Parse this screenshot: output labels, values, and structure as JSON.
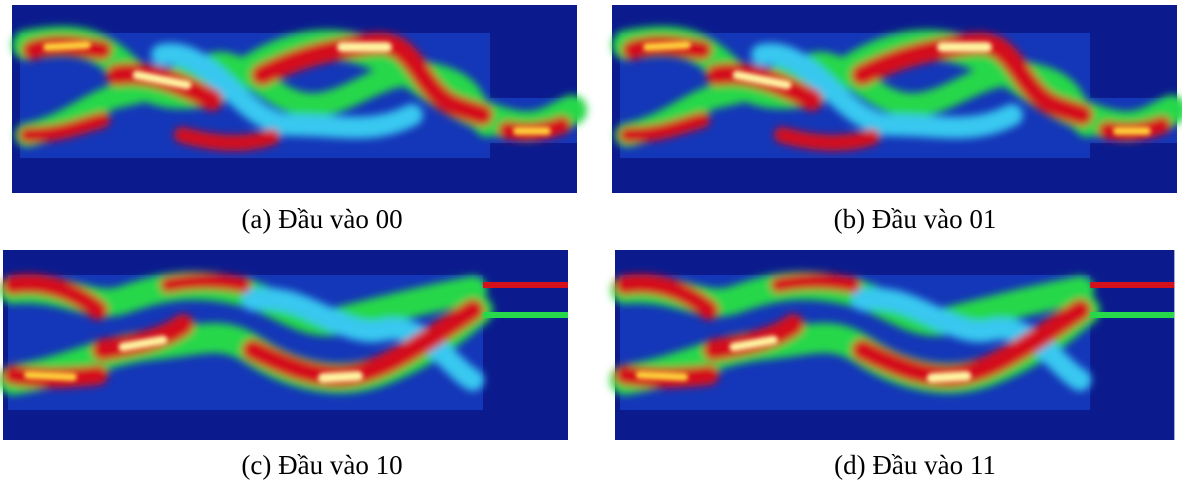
{
  "figure": {
    "panels": [
      {
        "caption": "(a) Đầu vào 00"
      },
      {
        "caption": "(b) Đầu vào 01"
      },
      {
        "caption": "(c) Đầu vào 10"
      },
      {
        "caption": "(d) Đầu vào 11"
      }
    ]
  }
}
